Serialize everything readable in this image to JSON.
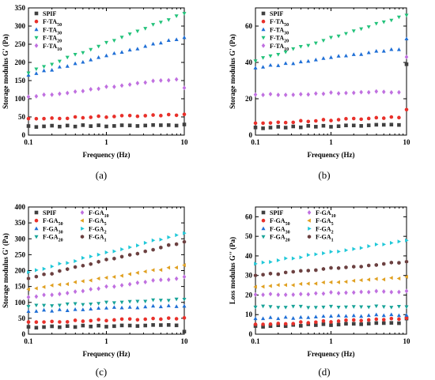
{
  "chart_data": [
    {
      "panel_label": "(a)",
      "type": "scatter",
      "xscale": "log",
      "xlim": [
        0.1,
        10
      ],
      "ylim": [
        0,
        350
      ],
      "yticks": [
        0,
        50,
        100,
        150,
        200,
        250,
        300,
        350
      ],
      "xticks": [
        0.1,
        1,
        10
      ],
      "xtick_labels": [
        "0.1",
        "1",
        "10"
      ],
      "xlabel": "Frequency (Hz)",
      "ylabel": "Storage modulus G' (Pa)",
      "legend_position": "top-left",
      "legend_columns": 1,
      "series": [
        {
          "name": "SPIF",
          "base": "SPIF",
          "sub": "",
          "color": "#404040",
          "marker": "square",
          "start": 24,
          "end": 28
        },
        {
          "name": "F-TA50",
          "base": "F-TA",
          "sub": "50",
          "color": "#e8302a",
          "marker": "circle",
          "start": 45,
          "end": 56
        },
        {
          "name": "F-TA30",
          "base": "F-TA",
          "sub": "30",
          "color": "#1f6fd6",
          "marker": "triangle-up",
          "start": 165,
          "end": 270
        },
        {
          "name": "F-TA20",
          "base": "F-TA",
          "sub": "20",
          "color": "#22c27a",
          "marker": "triangle-down",
          "start": 172,
          "end": 335
        },
        {
          "name": "F-TA10",
          "base": "F-TA",
          "sub": "10",
          "color": "#c070e0",
          "marker": "diamond",
          "start": 104,
          "end": 158,
          "last": 130
        }
      ]
    },
    {
      "panel_label": "(b)",
      "type": "scatter",
      "xscale": "log",
      "xlim": [
        0.1,
        10
      ],
      "ylim": [
        0,
        70
      ],
      "yticks": [
        0,
        20,
        40,
        60
      ],
      "xticks": [
        0.1,
        1,
        10
      ],
      "xtick_labels": [
        "0.1",
        "1",
        "10"
      ],
      "xlabel": "Frequency (Hz)",
      "ylabel": "Storage modulus G' (Pa)",
      "legend_position": "top-left",
      "legend_columns": 1,
      "series": [
        {
          "name": "SPIF",
          "base": "SPIF",
          "sub": "",
          "color": "#404040",
          "marker": "square",
          "start": 4,
          "end": 6,
          "last": 39
        },
        {
          "name": "F-TA50",
          "base": "F-TA",
          "sub": "50",
          "color": "#e8302a",
          "marker": "circle",
          "start": 6.5,
          "end": 10,
          "last": 14
        },
        {
          "name": "F-TA30",
          "base": "F-TA",
          "sub": "30",
          "color": "#1f6fd6",
          "marker": "triangle-up",
          "start": 37,
          "end": 48,
          "last": 53
        },
        {
          "name": "F-TA20",
          "base": "F-TA",
          "sub": "20",
          "color": "#22c27a",
          "marker": "triangle-down",
          "start": 41,
          "end": 66
        },
        {
          "name": "F-TA10",
          "base": "F-TA",
          "sub": "10",
          "color": "#c070e0",
          "marker": "diamond",
          "start": 22,
          "end": 24,
          "last": 43
        }
      ]
    },
    {
      "panel_label": "(c)",
      "type": "scatter",
      "xscale": "log",
      "xlim": [
        0.1,
        10
      ],
      "ylim": [
        0,
        400
      ],
      "yticks": [
        0,
        50,
        100,
        150,
        200,
        250,
        300,
        350,
        400
      ],
      "xticks": [
        0.1,
        1,
        10
      ],
      "xtick_labels": [
        "0.1",
        "1",
        "10"
      ],
      "xlabel": "Frequency (Hz)",
      "ylabel": "Storage modulus G' (Pa)",
      "legend_position": "top-left",
      "legend_columns": 2,
      "series": [
        {
          "name": "SPIF",
          "base": "SPIF",
          "sub": "",
          "color": "#404040",
          "marker": "square",
          "start": 22,
          "end": 30,
          "last": 8
        },
        {
          "name": "F-GA50",
          "base": "F-GA",
          "sub": "50",
          "color": "#e8302a",
          "marker": "circle",
          "start": 38,
          "end": 50
        },
        {
          "name": "F-GA30",
          "base": "F-GA",
          "sub": "30",
          "color": "#1f6fd6",
          "marker": "triangle-up",
          "start": 72,
          "end": 90
        },
        {
          "name": "F-GA20",
          "base": "F-GA",
          "sub": "20",
          "color": "#17a398",
          "marker": "triangle-down",
          "start": 88,
          "end": 110
        },
        {
          "name": "F-GA10",
          "base": "F-GA",
          "sub": "10",
          "color": "#c070e0",
          "marker": "diamond",
          "start": 115,
          "end": 180
        },
        {
          "name": "F-GA5",
          "base": "F-GA",
          "sub": "5",
          "color": "#e0a020",
          "marker": "triangle-left",
          "start": 140,
          "end": 215
        },
        {
          "name": "F-GA2",
          "base": "F-GA",
          "sub": "2",
          "color": "#20c8d8",
          "marker": "triangle-right",
          "start": 195,
          "end": 318
        },
        {
          "name": "F-GA1",
          "base": "F-GA",
          "sub": "1",
          "color": "#6b4040",
          "marker": "hexagon",
          "start": 175,
          "end": 290
        }
      ]
    },
    {
      "panel_label": "(d)",
      "type": "scatter",
      "xscale": "log",
      "xlim": [
        0.1,
        10
      ],
      "ylim": [
        0,
        65
      ],
      "yticks": [
        0,
        10,
        20,
        30,
        40,
        50,
        60
      ],
      "xticks": [
        0.1,
        1,
        10
      ],
      "xtick_labels": [
        "0.1",
        "1",
        "10"
      ],
      "xlabel": "Frequency (Hz)",
      "ylabel": "Loss modulus G'' (Pa)",
      "legend_position": "top-left",
      "legend_columns": 2,
      "series": [
        {
          "name": "SPIF",
          "base": "SPIF",
          "sub": "",
          "color": "#404040",
          "marker": "square",
          "start": 4,
          "end": 6,
          "last": 8
        },
        {
          "name": "F-GA50",
          "base": "F-GA",
          "sub": "50",
          "color": "#e8302a",
          "marker": "circle",
          "start": 5,
          "end": 8
        },
        {
          "name": "F-GA30",
          "base": "F-GA",
          "sub": "30",
          "color": "#1f6fd6",
          "marker": "triangle-up",
          "start": 8,
          "end": 10
        },
        {
          "name": "F-GA20",
          "base": "F-GA",
          "sub": "20",
          "color": "#17a398",
          "marker": "triangle-down",
          "start": 14,
          "end": 14
        },
        {
          "name": "F-GA10",
          "base": "F-GA",
          "sub": "10",
          "color": "#c070e0",
          "marker": "diamond",
          "start": 20,
          "end": 22
        },
        {
          "name": "F-GA5",
          "base": "F-GA",
          "sub": "5",
          "color": "#e0a020",
          "marker": "triangle-left",
          "start": 24,
          "end": 29
        },
        {
          "name": "F-GA2",
          "base": "F-GA",
          "sub": "2",
          "color": "#20c8d8",
          "marker": "triangle-right",
          "start": 36,
          "end": 48
        },
        {
          "name": "F-GA1",
          "base": "F-GA",
          "sub": "1",
          "color": "#6b4040",
          "marker": "hexagon",
          "start": 30,
          "end": 37
        }
      ]
    }
  ]
}
